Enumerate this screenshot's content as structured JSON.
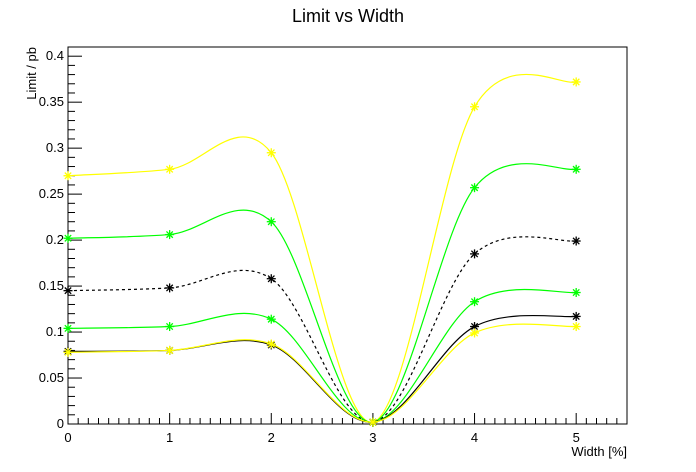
{
  "chart_data": {
    "type": "line",
    "title": "Limit vs Width",
    "xlabel": "Width [%]",
    "ylabel": "Limit / pb",
    "xlim": [
      0,
      5.5
    ],
    "ylim": [
      0,
      0.41
    ],
    "xticks": [
      0,
      1,
      2,
      3,
      4,
      5
    ],
    "xtick_labels": [
      "0",
      "1",
      "2",
      "3",
      "4",
      "5"
    ],
    "yticks": [
      0,
      0.05,
      0.1,
      0.15,
      0.2,
      0.25,
      0.3,
      0.35,
      0.4
    ],
    "ytick_labels": [
      "0",
      "0.05",
      "0.1",
      "0.15",
      "0.2",
      "0.25",
      "0.3",
      "0.35",
      "0.4"
    ],
    "grid": false,
    "legend": false,
    "x": [
      0,
      1,
      2,
      3,
      4,
      5
    ],
    "series": [
      {
        "values": [
          0.27,
          0.277,
          0.295,
          0.002,
          0.345,
          0.372
        ],
        "color": "#ffff00",
        "line_style": "solid",
        "marker": "star"
      },
      {
        "values": [
          0.202,
          0.206,
          0.22,
          0.002,
          0.257,
          0.277
        ],
        "color": "#00ff00",
        "line_style": "solid",
        "marker": "star"
      },
      {
        "values": [
          0.145,
          0.148,
          0.158,
          0.002,
          0.185,
          0.199
        ],
        "color": "#000000",
        "line_style": "dashed",
        "marker": "star"
      },
      {
        "values": [
          0.104,
          0.106,
          0.114,
          0.002,
          0.133,
          0.143
        ],
        "color": "#00ff00",
        "line_style": "solid",
        "marker": "star"
      },
      {
        "values": [
          0.079,
          0.08,
          0.086,
          0.002,
          0.106,
          0.117
        ],
        "color": "#000000",
        "line_style": "solid",
        "marker": "star"
      },
      {
        "values": [
          0.078,
          0.08,
          0.087,
          0.002,
          0.099,
          0.106
        ],
        "color": "#ffff00",
        "line_style": "solid",
        "marker": "star"
      }
    ]
  }
}
